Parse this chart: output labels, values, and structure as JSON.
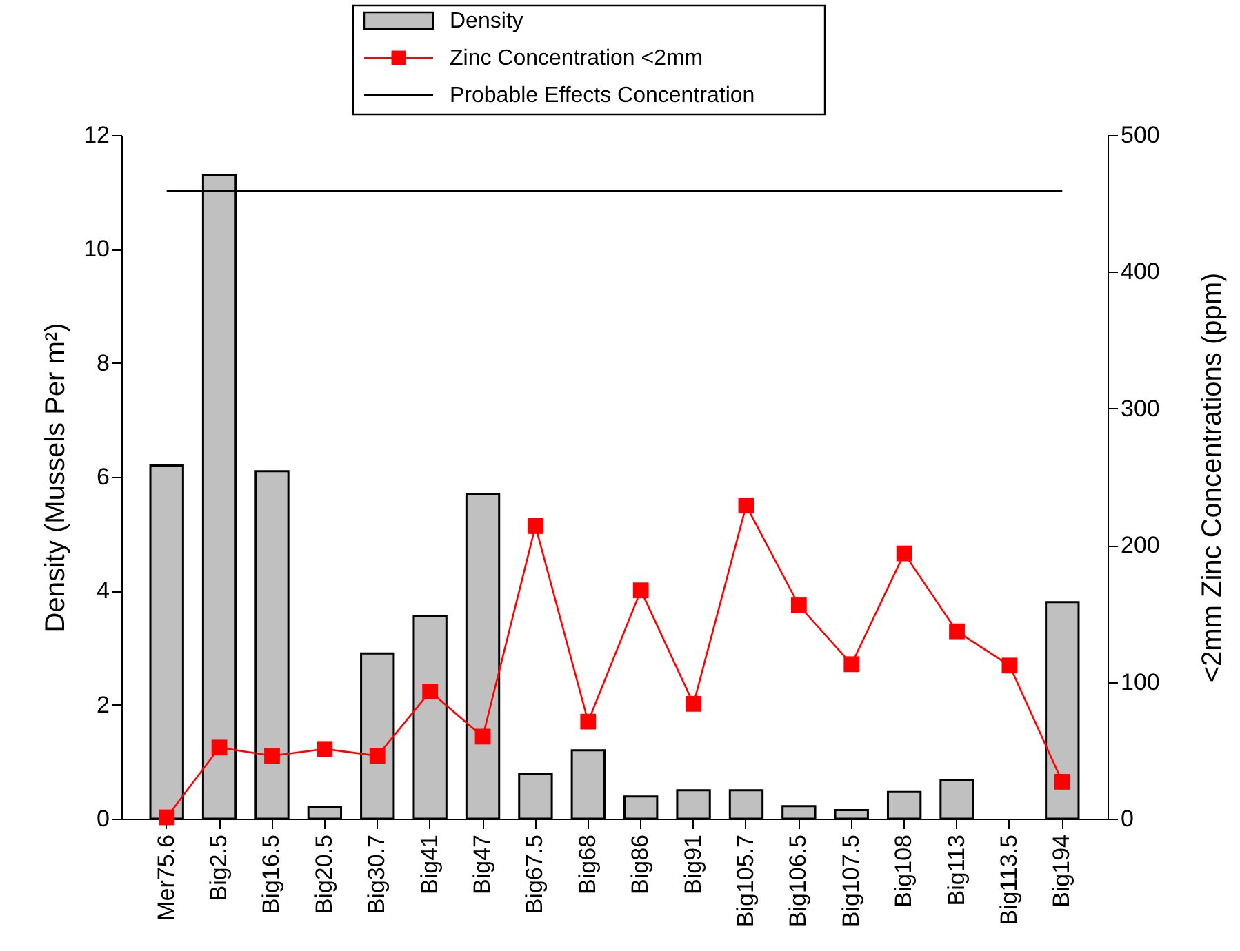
{
  "chart_data": {
    "type": "bar",
    "categories": [
      "Mer75.6",
      "Big2.5",
      "Big16.5",
      "Big20.5",
      "Big30.7",
      "Big41",
      "Big47",
      "Big67.5",
      "Big68",
      "Big86",
      "Big91",
      "Big105.7",
      "Big106.5",
      "Big107.5",
      "Big108",
      "Big113",
      "Big113.5",
      "Big194"
    ],
    "series": [
      {
        "name": "Density",
        "color": "#c0c0c0",
        "values": [
          6.2,
          11.3,
          6.1,
          0.2,
          2.9,
          3.55,
          5.7,
          0.78,
          1.2,
          0.39,
          0.5,
          0.5,
          0.22,
          0.15,
          0.47,
          0.68,
          null,
          3.8
        ]
      },
      {
        "name": "Zinc Concentration <2mm",
        "type": "line",
        "axis": "y2",
        "color": "#ff0000",
        "values": [
          1,
          52,
          46,
          51,
          46,
          93,
          60,
          214,
          71,
          167,
          84,
          229,
          156,
          113,
          194,
          137,
          112,
          27
        ]
      }
    ],
    "ylabel": "Density (Mussels Per m²)",
    "y2label": "<2mm Zinc Concentrations (ppm)",
    "ylim": [
      0,
      12
    ],
    "yticks": [
      0,
      2,
      4,
      6,
      8,
      10,
      12
    ],
    "y2lim": [
      0,
      500
    ],
    "y2ticks": [
      0,
      100,
      200,
      300,
      400,
      500
    ],
    "ref_lines": [
      {
        "axis": "y2",
        "value": 459,
        "label": "Probable Effects Concentration",
        "color": "#000000"
      }
    ],
    "marker": "square",
    "legend": "top"
  }
}
